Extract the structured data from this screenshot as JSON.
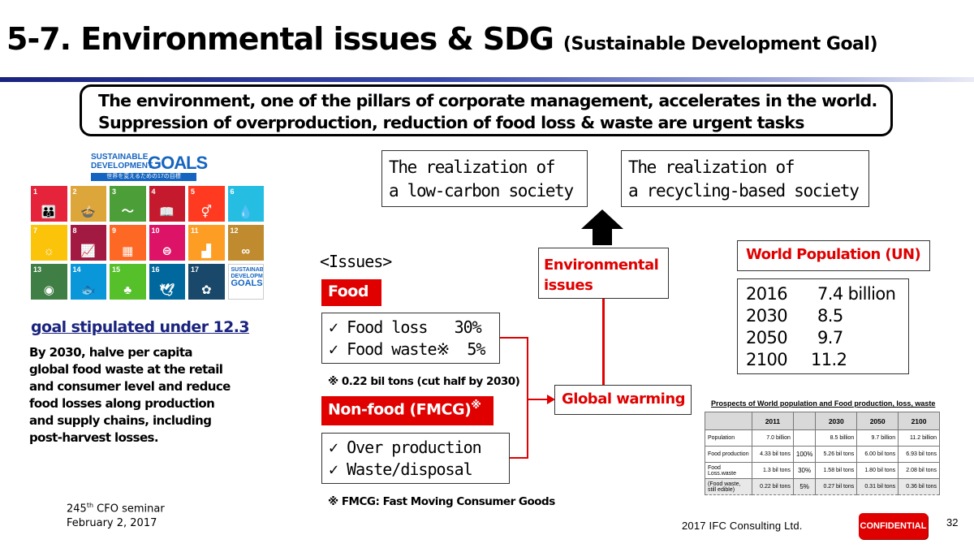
{
  "slide": {
    "title": "5-7. Environmental issues & SDG",
    "title_sub": "(Sustainable Development Goal)",
    "banner_line1": "The environment, one of the pillars of corporate management, accelerates in the world.",
    "banner_line2": "Suppression of overproduction, reduction of food loss & waste are urgent tasks",
    "page_number": "32",
    "copyright": "2017 IFC Consulting Ltd.",
    "confidential": "CONFIDENTIAL"
  },
  "sdg": {
    "logo_line1": "SUSTAINABLE",
    "logo_line2": "DEVELOPMENT",
    "logo_goals": "GOALS",
    "logo_tagline": "世界を変えるための17の目標",
    "tiles": [
      {
        "num": "1",
        "color": "#e5243b",
        "icon": "people-icon",
        "glyph": "👪"
      },
      {
        "num": "2",
        "color": "#dda63a",
        "icon": "bowl-icon",
        "glyph": "🍲"
      },
      {
        "num": "3",
        "color": "#4c9f38",
        "icon": "heartbeat-icon",
        "glyph": "〜"
      },
      {
        "num": "4",
        "color": "#c5192d",
        "icon": "book-icon",
        "glyph": "📖"
      },
      {
        "num": "5",
        "color": "#ff3a21",
        "icon": "gender-icon",
        "glyph": "⚥"
      },
      {
        "num": "6",
        "color": "#26bde2",
        "icon": "water-icon",
        "glyph": "💧"
      },
      {
        "num": "7",
        "color": "#fcc30b",
        "icon": "sun-icon",
        "glyph": "☼"
      },
      {
        "num": "8",
        "color": "#a21942",
        "icon": "growth-icon",
        "glyph": "📈"
      },
      {
        "num": "9",
        "color": "#fd6925",
        "icon": "cubes-icon",
        "glyph": "▦"
      },
      {
        "num": "10",
        "color": "#dd1367",
        "icon": "equal-icon",
        "glyph": "⊜"
      },
      {
        "num": "11",
        "color": "#fd9d24",
        "icon": "city-icon",
        "glyph": "▟"
      },
      {
        "num": "12",
        "color": "#bf8b2e",
        "icon": "infinity-icon",
        "glyph": "∞"
      },
      {
        "num": "13",
        "color": "#3f7e44",
        "icon": "eye-icon",
        "glyph": "◉"
      },
      {
        "num": "14",
        "color": "#0a97d9",
        "icon": "fish-icon",
        "glyph": "🐟"
      },
      {
        "num": "15",
        "color": "#56c02b",
        "icon": "tree-icon",
        "glyph": "♣"
      },
      {
        "num": "16",
        "color": "#00689d",
        "icon": "dove-icon",
        "glyph": "🕊"
      },
      {
        "num": "17",
        "color": "#19486a",
        "icon": "flower-icon",
        "glyph": "✿"
      }
    ],
    "final_tile_line1": "SUSTAINABLE",
    "final_tile_line2": "DEVELOPMENT",
    "final_tile_line3": "GOALS",
    "goal_heading": "goal stipulated under 12.3",
    "goal_text": "By 2030, halve per capita global food waste at the retail and consumer level and reduce food losses along production and supply chains, including post-harvest losses."
  },
  "seminar": {
    "number": "245",
    "suffix": "th",
    "label": " CFO seminar",
    "date": "February 2, 2017"
  },
  "diagram": {
    "realization1_l1": "The realization of",
    "realization1_l2": "a low-carbon society",
    "realization2_l1": "The realization of",
    "realization2_l2": "a recycling-based society",
    "env_l1": "Environmental",
    "env_l2": "issues",
    "global_warming": "Global warming",
    "issues_header": "<Issues>",
    "food_label": "Food",
    "food_items": [
      "✓ Food loss   30%",
      "✓ Food waste※  5%"
    ],
    "food_note": "※ 0.22 bil tons (cut half by 2030)",
    "nonfood_label": "Non-food (FMCG)",
    "nonfood_mark": "※",
    "nonfood_items": [
      "✓ Over production",
      "✓ Waste/disposal"
    ],
    "fmcg_note": "※ FMCG: Fast Moving Consumer Goods"
  },
  "population": {
    "header": "World Population (UN)",
    "rows": [
      {
        "year": "2016",
        "value": "7.4 billion"
      },
      {
        "year": "2030",
        "value": "8.5"
      },
      {
        "year": "2050",
        "value": "9.7"
      },
      {
        "year": "2100",
        "value": "11.2"
      }
    ]
  },
  "prospects": {
    "title": "Prospects of World population and Food production, loss, waste",
    "headers": [
      "",
      "2011",
      "",
      "2030",
      "2050",
      "2100"
    ],
    "rows": [
      {
        "label": "Population",
        "c2011": "7.0 billion",
        "pct": "",
        "c2030": "8.5 billion",
        "c2050": "9.7 billion",
        "c2100": "11.2 billion"
      },
      {
        "label": "Food production",
        "c2011": "4.33 bil tons",
        "pct": "100%",
        "c2030": "5.26 bil tons",
        "c2050": "6.00 bil tons",
        "c2100": "6.93 bil tons"
      },
      {
        "label": "Food Loss.waste",
        "c2011": "1.3 bil tons",
        "pct": "30%",
        "c2030": "1.58 bil tons",
        "c2050": "1.80 bil tons",
        "c2100": "2.08 bil tons"
      },
      {
        "label": "(Food waste, still edible)",
        "c2011": "0.22 bil tons",
        "pct": "5%",
        "c2030": "0.27 bil tons",
        "c2050": "0.31 bil tons",
        "c2100": "0.36 bil tons"
      }
    ]
  }
}
